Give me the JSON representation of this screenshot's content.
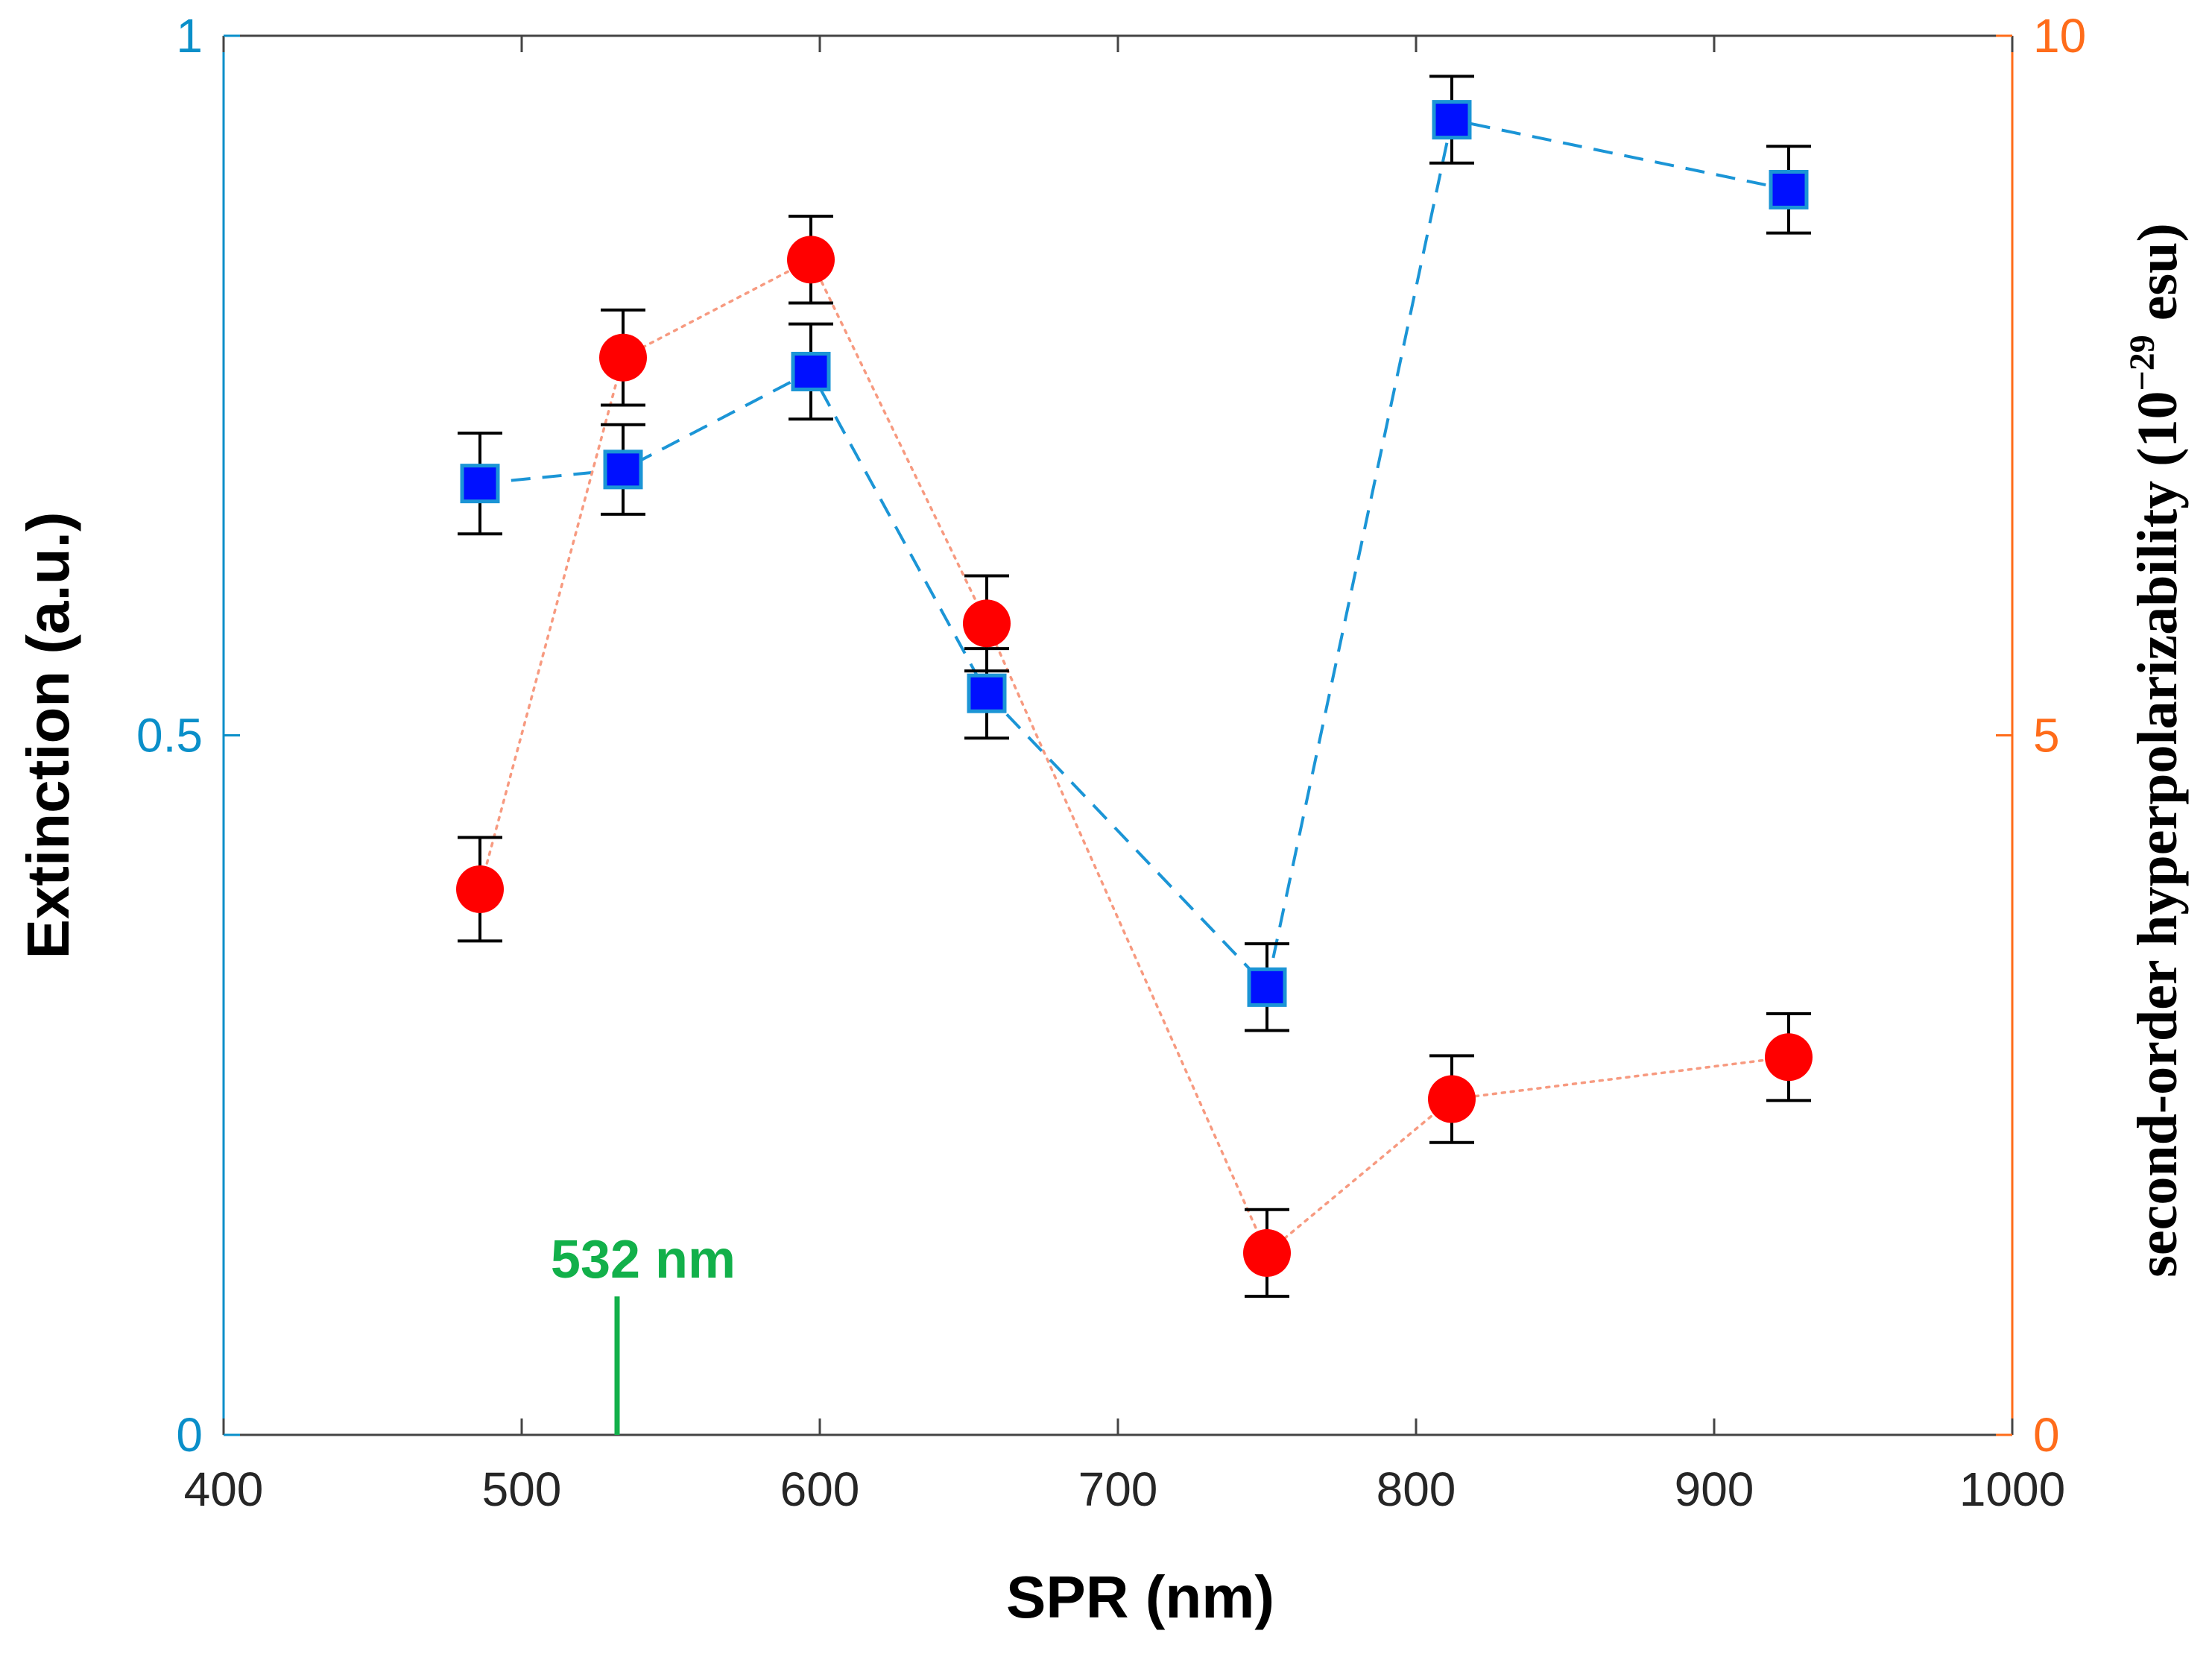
{
  "chart_data": {
    "type": "scatter",
    "title": "",
    "xlabel": "SPR (nm)",
    "ylabel_left": "Extinction (a.u.)",
    "ylabel_right": "second-order hyperpolarizability (10",
    "ylabel_right_exp": "−29",
    "ylabel_right_tail": " esu)",
    "xlim": [
      400,
      1000
    ],
    "ylim_left": [
      0,
      1
    ],
    "ylim_right": [
      0,
      10
    ],
    "x_ticks": [
      "400",
      "500",
      "600",
      "700",
      "800",
      "900",
      "1000"
    ],
    "y_left_ticks": [
      "0",
      "0.5",
      "1"
    ],
    "y_right_ticks": [
      "0",
      "5",
      "10"
    ],
    "annotation": {
      "label": "532 nm",
      "x": 532,
      "y_extent_left": 0.075
    },
    "series": [
      {
        "name": "Extinction",
        "axis": "left",
        "marker": "square",
        "line": "dashed",
        "x": [
          486,
          534,
          597,
          656,
          750,
          812,
          925
        ],
        "y": [
          0.68,
          0.69,
          0.76,
          0.53,
          0.32,
          0.94,
          0.89
        ],
        "err": [
          0.036,
          0.032,
          0.034,
          0.032,
          0.031,
          0.031,
          0.031
        ]
      },
      {
        "name": "Hyperpolarizability",
        "axis": "right",
        "marker": "circle",
        "line": "dotted",
        "x": [
          486,
          534,
          597,
          656,
          750,
          812,
          925
        ],
        "y": [
          3.9,
          7.7,
          8.4,
          5.8,
          1.3,
          2.4,
          2.7
        ],
        "err": [
          0.37,
          0.34,
          0.31,
          0.34,
          0.31,
          0.31,
          0.31
        ]
      }
    ],
    "colors": {
      "left_axis": "#0a8fc9",
      "right_axis": "#ff6c1a",
      "squares_fill": "#0010ff",
      "squares_edge": "#1b95d6",
      "squares_line": "#1b95d6",
      "circles_fill": "#ff0000",
      "circles_line": "#f79a80",
      "errorbar": "#000000",
      "annotation": "#12b04a",
      "frame": "#444444"
    }
  }
}
